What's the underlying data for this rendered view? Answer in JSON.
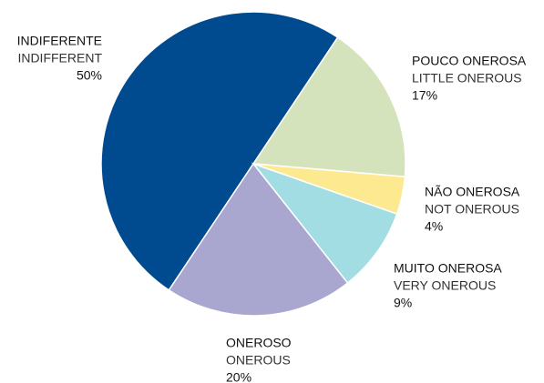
{
  "chart_data": {
    "type": "pie",
    "categories": [
      "INDIFERENTE",
      "POUCO ONEROSA",
      "NÃO ONEROSA",
      "MUITO ONEROSA",
      "ONEROSO"
    ],
    "categories_en": [
      "INDIFFERENT",
      "LITTLE ONEROUS",
      "NOT ONEROUS",
      "VERY ONEROUS",
      "ONEROUS"
    ],
    "values": [
      50,
      17,
      4,
      9,
      20
    ],
    "value_labels": [
      "50%",
      "17%",
      "4%",
      "9%",
      "20%"
    ],
    "colors": [
      "#004a8f",
      "#d5e3bd",
      "#fde98f",
      "#a3dde4",
      "#a9a6cf"
    ]
  }
}
